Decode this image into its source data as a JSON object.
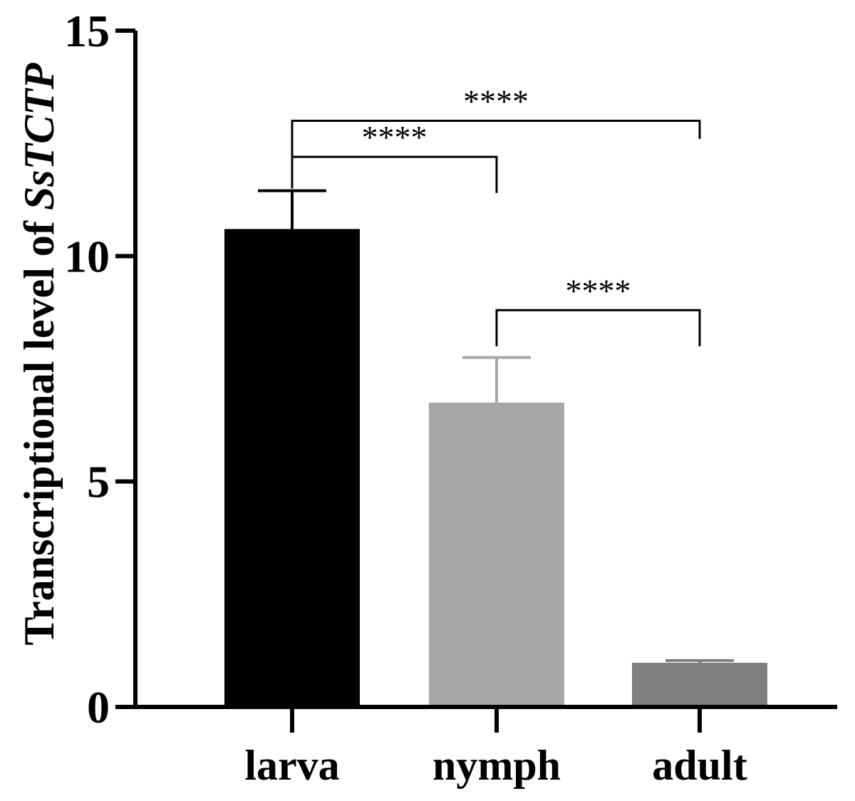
{
  "chart_data": {
    "type": "bar",
    "categories": [
      "larva",
      "nymph",
      "adult"
    ],
    "values": [
      10.6,
      6.75,
      0.98
    ],
    "errors": [
      0.85,
      1.0,
      0.05
    ],
    "colors": [
      "#000000",
      "#a7a7a9",
      "#808080"
    ],
    "error_colors": [
      "#000000",
      "#a7a7a9",
      "#808080"
    ],
    "ylabel": "Transcriptional level of ",
    "ylabel_gene": "SsTCTP",
    "ylim": [
      0,
      15
    ],
    "yticks": [
      0,
      5,
      10,
      15
    ],
    "yticklabels": [
      "0",
      "5",
      "10",
      "15"
    ],
    "significance": [
      {
        "from": 0,
        "to": 2,
        "label": "****",
        "y": 13.0,
        "drop_from": 12.0,
        "drop_to": 12.6
      },
      {
        "from": 0,
        "to": 1,
        "label": "****",
        "y": 12.2,
        "drop_from": 11.5,
        "drop_to": 11.4
      },
      {
        "from": 1,
        "to": 2,
        "label": "****",
        "y": 8.8,
        "drop_from": 8.0,
        "drop_to": 8.0
      }
    ],
    "grid": false,
    "legend": "none"
  }
}
